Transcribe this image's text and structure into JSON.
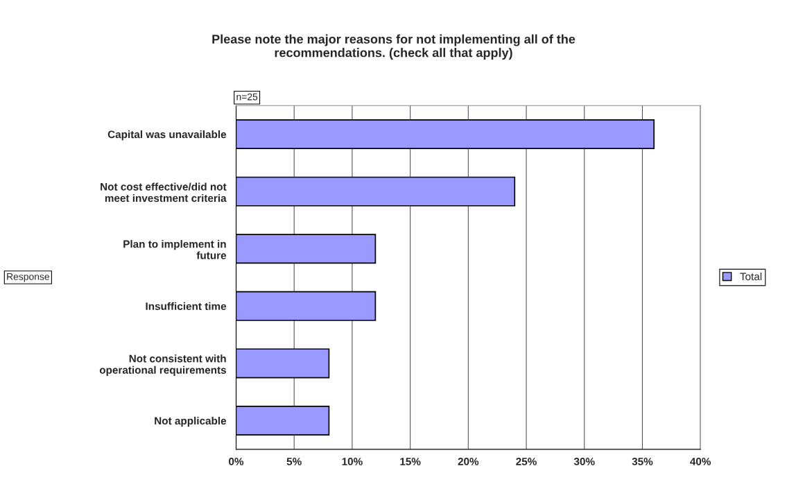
{
  "chart_data": {
    "type": "bar",
    "orientation": "horizontal",
    "title": "Please note the major reasons for not implementing all of the\nrecommendations. (check all that apply)",
    "annotations": [
      "n=25",
      "Response"
    ],
    "categories": [
      "Capital was unavailable",
      "Not cost effective/did not\nmeet investment criteria",
      "Plan to implement in\nfuture",
      "Insufficient time",
      "Not consistent with\noperational requirements",
      "Not applicable"
    ],
    "series": [
      {
        "name": "Total",
        "color": "#9999ff",
        "values": [
          36,
          24,
          12,
          12,
          8,
          8
        ]
      }
    ],
    "xlim": [
      0,
      40
    ],
    "xticks": [
      {
        "value": 0,
        "label": "0%"
      },
      {
        "value": 5,
        "label": "5%"
      },
      {
        "value": 10,
        "label": "10%"
      },
      {
        "value": 15,
        "label": "15%"
      },
      {
        "value": 20,
        "label": "20%"
      },
      {
        "value": 25,
        "label": "25%"
      },
      {
        "value": 30,
        "label": "30%"
      },
      {
        "value": 35,
        "label": "35%"
      },
      {
        "value": 40,
        "label": "40%"
      }
    ],
    "grid": "x",
    "legend": "right"
  }
}
